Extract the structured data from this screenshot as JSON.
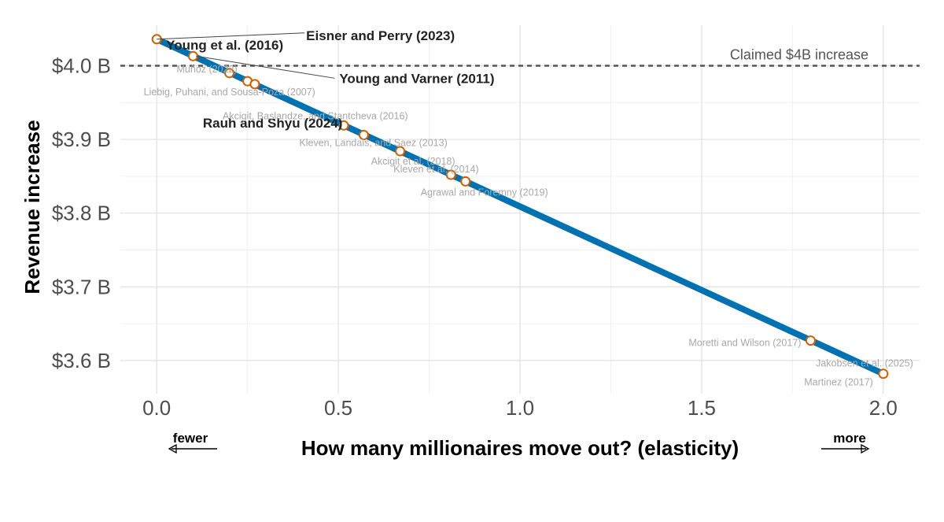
{
  "chart_data": {
    "type": "line",
    "xlabel": "How many millionaires move out? (elasticity)",
    "ylabel": "Revenue increase",
    "xlim": [
      -0.1,
      2.1
    ],
    "ylim": [
      3.555,
      4.055
    ],
    "x_ticks": [
      0.0,
      0.5,
      1.0,
      1.5,
      2.0
    ],
    "x_tick_labels": [
      "0.0",
      "0.5",
      "1.0",
      "1.5",
      "2.0"
    ],
    "y_ticks": [
      3.6,
      3.7,
      3.8,
      3.9,
      4.0
    ],
    "y_tick_labels": [
      "$3.6 B",
      "$3.7 B",
      "$3.8 B",
      "$3.9 B",
      "$4.0 B"
    ],
    "grid": true,
    "line_color": "#0072b2",
    "point_edge_color": "#d55e00",
    "series": [
      {
        "x": [
          0.0,
          2.0
        ],
        "y": [
          4.036,
          3.582
        ]
      }
    ],
    "reference_line": {
      "y": 4.0,
      "label": "Claimed $4B increase",
      "style": "dashed",
      "color": "#555555"
    },
    "studies": [
      {
        "label": "Young et al. (2016)",
        "x": 0.0,
        "y": 4.036,
        "bold": true
      },
      {
        "label": "Eisner and Perry (2023)",
        "x": 0.0,
        "y": 4.036,
        "bold": true
      },
      {
        "label": "Young and Varner (2011)",
        "x": 0.1,
        "y": 4.013,
        "bold": true
      },
      {
        "label": "Muñoz (2022)",
        "x": 0.2,
        "y": 3.99,
        "bold": false
      },
      {
        "label": "Liebig, Puhani, and Sousa-Poza (2007)",
        "x": 0.25,
        "y": 3.979,
        "bold": false
      },
      {
        "label": "Rauh and Shyu (2024)",
        "x": 0.27,
        "y": 3.975,
        "bold": true
      },
      {
        "label": "Akcigit, Baslandze, and Stantcheva (2016)",
        "x": 0.515,
        "y": 3.919,
        "bold": false
      },
      {
        "label": "Kleven, Landais, and Saez (2013)",
        "x": 0.57,
        "y": 3.906,
        "bold": false
      },
      {
        "label": "Akcigit et al. (2018)",
        "x": 0.67,
        "y": 3.884,
        "bold": false
      },
      {
        "label": "Kleven et al. (2014)",
        "x": 0.81,
        "y": 3.852,
        "bold": false
      },
      {
        "label": "Agrawal and Foremny (2019)",
        "x": 0.85,
        "y": 3.843,
        "bold": false
      },
      {
        "label": "Moretti and Wilson (2017)",
        "x": 1.8,
        "y": 3.627,
        "bold": false
      },
      {
        "label": "Jakobsen et al. (2025)",
        "x": 2.0,
        "y": 3.582,
        "bold": false
      },
      {
        "label": "Martinez (2017)",
        "x": 2.0,
        "y": 3.582,
        "bold": false
      }
    ],
    "direction_labels": {
      "left": "fewer",
      "right": "more"
    }
  }
}
